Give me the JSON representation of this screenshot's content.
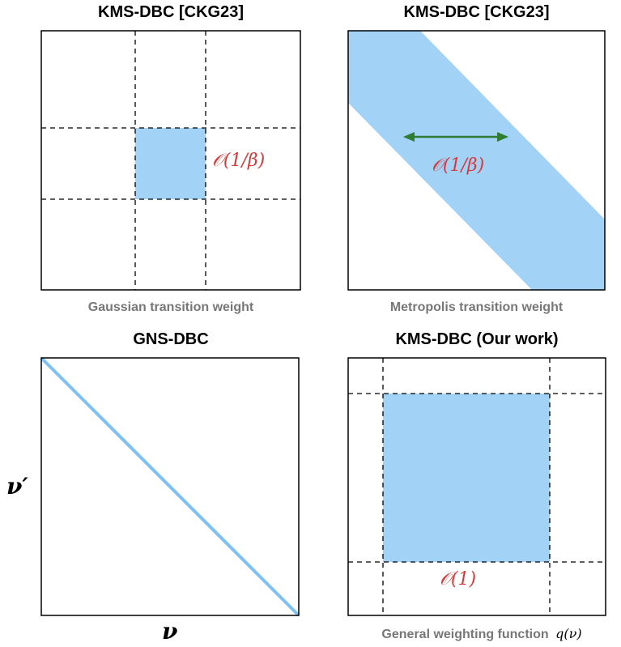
{
  "panels": {
    "top_left": {
      "title": "KMS-DBC [CKG23]",
      "annotation": "𝒪(1/β)",
      "caption": "Gaussian transition weight"
    },
    "top_right": {
      "title": "KMS-DBC [CKG23]",
      "annotation": "𝒪(1/β)",
      "caption": "Metropolis transition weight"
    },
    "bottom_left": {
      "title": "GNS-DBC",
      "xlabel": "ν",
      "ylabel": "ν′"
    },
    "bottom_right": {
      "title": "KMS-DBC (Our work)",
      "annotation": "𝒪(1)",
      "caption_text": "General weighting function",
      "caption_math": "q(ν)"
    }
  },
  "colors": {
    "fill": "#a3d2f7",
    "line": "#7fc1f4",
    "annotation": "#d63b3b",
    "arrow": "#2e7d32",
    "caption": "#777777"
  }
}
